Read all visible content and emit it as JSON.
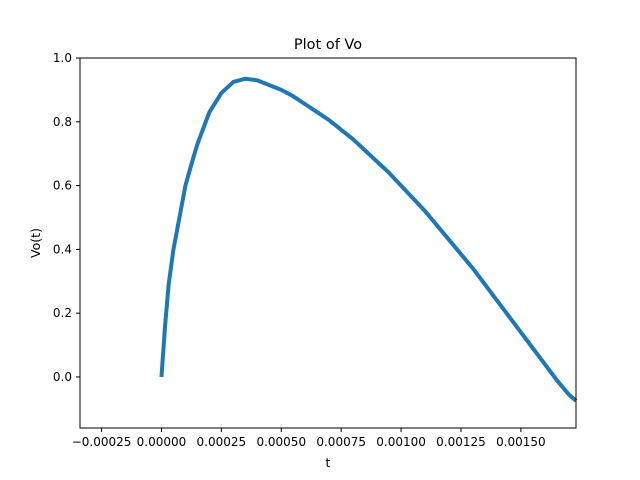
{
  "chart_data": {
    "type": "line",
    "title": "Plot of Vo",
    "xlabel": "t",
    "ylabel": "Vo(t)",
    "xlim": [
      -0.00034,
      0.00173
    ],
    "ylim": [
      -0.16,
      1.0
    ],
    "grid": false,
    "x_ticks": [
      -0.00025,
      0.0,
      0.00025,
      0.0005,
      0.00075,
      0.001,
      0.00125,
      0.0015
    ],
    "x_tick_labels": [
      "−0.00025",
      "0.00000",
      "0.00025",
      "0.00050",
      "0.00075",
      "0.00100",
      "0.00125",
      "0.00150"
    ],
    "y_ticks": [
      0.0,
      0.2,
      0.4,
      0.6,
      0.8,
      1.0
    ],
    "y_tick_labels": [
      "0.0",
      "0.2",
      "0.4",
      "0.6",
      "0.8",
      "1.0"
    ],
    "series": [
      {
        "color": "#1f77b4",
        "x": [
          0.0,
          1.5e-05,
          3e-05,
          5e-05,
          8e-05,
          0.0001,
          0.00013,
          0.00015,
          0.00018,
          0.0002,
          0.00025,
          0.0003,
          0.00035,
          0.0004,
          0.00045,
          0.0005,
          0.00055,
          0.0006,
          0.00065,
          0.0007,
          0.00075,
          0.0008,
          0.00085,
          0.0009,
          0.00095,
          0.001,
          0.00105,
          0.0011,
          0.00115,
          0.0012,
          0.00125,
          0.0013,
          0.00135,
          0.0014,
          0.00145,
          0.0015,
          0.00155,
          0.0016,
          0.00165,
          0.0017,
          0.00173
        ],
        "y": [
          0.0,
          0.16,
          0.29,
          0.4,
          0.52,
          0.6,
          0.68,
          0.73,
          0.79,
          0.83,
          0.89,
          0.925,
          0.935,
          0.93,
          0.915,
          0.9,
          0.88,
          0.855,
          0.83,
          0.805,
          0.775,
          0.745,
          0.71,
          0.675,
          0.64,
          0.6,
          0.56,
          0.52,
          0.475,
          0.43,
          0.385,
          0.34,
          0.29,
          0.24,
          0.19,
          0.14,
          0.09,
          0.04,
          -0.01,
          -0.055,
          -0.075
        ]
      }
    ]
  }
}
